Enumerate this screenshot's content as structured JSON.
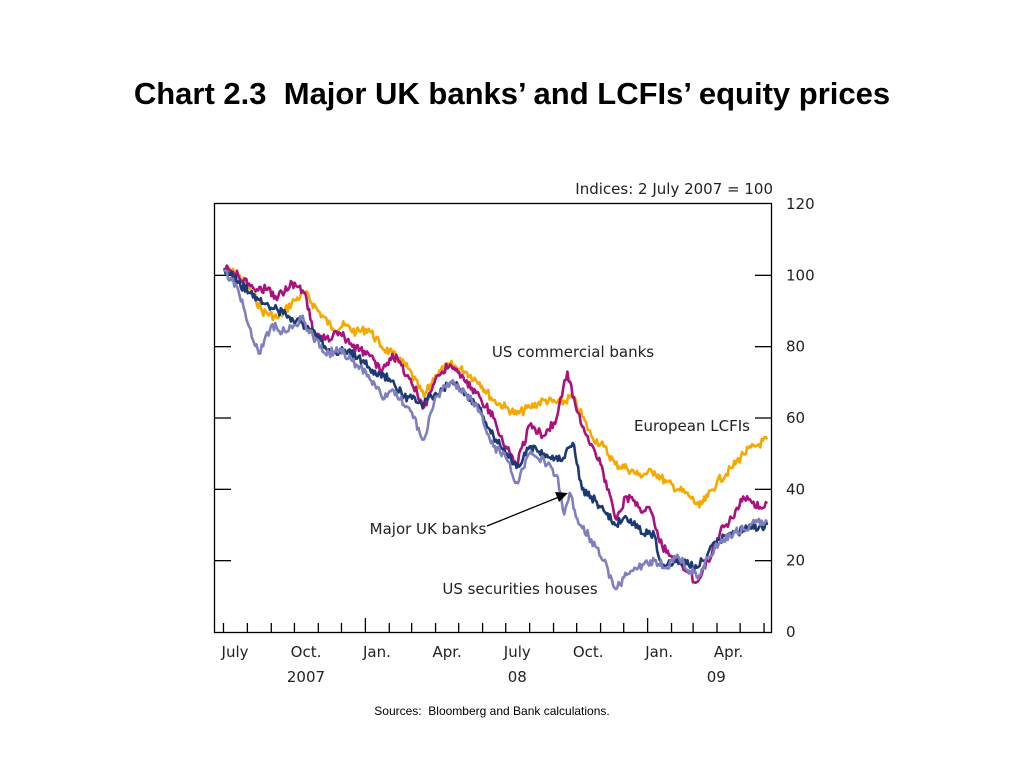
{
  "slide": {
    "title": "Chart 2.3  Major UK banks’ and LCFIs’ equity prices",
    "source": "Sources:  Bloomberg and Bank calculations."
  },
  "chart_data": {
    "type": "line",
    "unit_label": "Indices:  2 July 2007 = 100",
    "ylim": [
      0,
      120
    ],
    "y_ticks": [
      0,
      20,
      40,
      60,
      80,
      100,
      120
    ],
    "x_range": [
      "2007-06-20",
      "2009-06-10"
    ],
    "x_tick_dates": [
      "2007-07-01",
      "2007-08-01",
      "2007-09-01",
      "2007-10-01",
      "2007-11-01",
      "2007-12-01",
      "2008-01-01",
      "2008-02-01",
      "2008-03-01",
      "2008-04-01",
      "2008-05-01",
      "2008-06-01",
      "2008-07-01",
      "2008-08-01",
      "2008-09-01",
      "2008-10-01",
      "2008-11-01",
      "2008-12-01",
      "2009-01-01",
      "2009-02-01",
      "2009-03-01",
      "2009-04-01",
      "2009-05-01",
      "2009-06-01"
    ],
    "x_labels": [
      {
        "text": "July",
        "date": "2007-07-16"
      },
      {
        "text": "Oct.",
        "date": "2007-10-16"
      },
      {
        "text": "Jan.",
        "date": "2008-01-16"
      },
      {
        "text": "Apr.",
        "date": "2008-04-16"
      },
      {
        "text": "July",
        "date": "2008-07-16"
      },
      {
        "text": "Oct.",
        "date": "2008-10-16"
      },
      {
        "text": "Jan.",
        "date": "2009-01-16"
      },
      {
        "text": "Apr.",
        "date": "2009-04-16"
      }
    ],
    "year_labels": [
      {
        "text": "2007",
        "date": "2007-10-16"
      },
      {
        "text": "08",
        "date": "2008-07-16"
      },
      {
        "text": "09",
        "date": "2009-03-31"
      }
    ],
    "grid": false,
    "legend": "inline labels",
    "series": [
      {
        "name": "European LCFIs",
        "color": "#f5a800",
        "points": [
          [
            "2007-07-02",
            102
          ],
          [
            "2007-07-20",
            100
          ],
          [
            "2007-08-05",
            96
          ],
          [
            "2007-08-20",
            90
          ],
          [
            "2007-09-10",
            88
          ],
          [
            "2007-10-01",
            93
          ],
          [
            "2007-10-15",
            95
          ],
          [
            "2007-11-01",
            90
          ],
          [
            "2007-11-20",
            85
          ],
          [
            "2007-12-05",
            86
          ],
          [
            "2007-12-20",
            84
          ],
          [
            "2008-01-05",
            85
          ],
          [
            "2008-01-22",
            80
          ],
          [
            "2008-02-05",
            78
          ],
          [
            "2008-02-25",
            74
          ],
          [
            "2008-03-17",
            66
          ],
          [
            "2008-04-01",
            72
          ],
          [
            "2008-04-20",
            75
          ],
          [
            "2008-05-10",
            73
          ],
          [
            "2008-05-28",
            70
          ],
          [
            "2008-06-15",
            65
          ],
          [
            "2008-07-01",
            63
          ],
          [
            "2008-07-15",
            61
          ],
          [
            "2008-08-01",
            63
          ],
          [
            "2008-08-20",
            65
          ],
          [
            "2008-09-10",
            64
          ],
          [
            "2008-09-25",
            66
          ],
          [
            "2008-10-05",
            62
          ],
          [
            "2008-10-20",
            55
          ],
          [
            "2008-11-05",
            52
          ],
          [
            "2008-11-20",
            47
          ],
          [
            "2008-12-05",
            46
          ],
          [
            "2008-12-20",
            44
          ],
          [
            "2009-01-10",
            45
          ],
          [
            "2009-01-25",
            42
          ],
          [
            "2009-02-10",
            40
          ],
          [
            "2009-02-25",
            38
          ],
          [
            "2009-03-09",
            35
          ],
          [
            "2009-03-20",
            38
          ],
          [
            "2009-04-01",
            42
          ],
          [
            "2009-04-20",
            46
          ],
          [
            "2009-05-05",
            50
          ],
          [
            "2009-05-20",
            52
          ],
          [
            "2009-06-05",
            54
          ]
        ]
      },
      {
        "name": "US commercial banks",
        "color": "#a8117e",
        "points": [
          [
            "2007-07-02",
            102
          ],
          [
            "2007-07-20",
            100
          ],
          [
            "2007-08-05",
            97
          ],
          [
            "2007-08-25",
            96
          ],
          [
            "2007-09-10",
            94
          ],
          [
            "2007-09-28",
            98
          ],
          [
            "2007-10-15",
            95
          ],
          [
            "2007-10-25",
            84
          ],
          [
            "2007-11-10",
            82
          ],
          [
            "2007-11-28",
            84
          ],
          [
            "2007-12-15",
            80
          ],
          [
            "2008-01-05",
            78
          ],
          [
            "2008-01-22",
            73
          ],
          [
            "2008-02-05",
            78
          ],
          [
            "2008-02-25",
            72
          ],
          [
            "2008-03-17",
            63
          ],
          [
            "2008-04-01",
            71
          ],
          [
            "2008-04-20",
            75
          ],
          [
            "2008-05-10",
            70
          ],
          [
            "2008-05-28",
            66
          ],
          [
            "2008-06-15",
            60
          ],
          [
            "2008-07-01",
            52
          ],
          [
            "2008-07-15",
            47
          ],
          [
            "2008-08-01",
            58
          ],
          [
            "2008-08-20",
            55
          ],
          [
            "2008-09-05",
            60
          ],
          [
            "2008-09-19",
            73
          ],
          [
            "2008-10-01",
            62
          ],
          [
            "2008-10-15",
            55
          ],
          [
            "2008-11-01",
            47
          ],
          [
            "2008-11-20",
            32
          ],
          [
            "2008-12-05",
            38
          ],
          [
            "2008-12-20",
            35
          ],
          [
            "2009-01-05",
            34
          ],
          [
            "2009-01-20",
            24
          ],
          [
            "2009-02-05",
            21
          ],
          [
            "2009-02-20",
            17
          ],
          [
            "2009-03-06",
            14
          ],
          [
            "2009-03-20",
            20
          ],
          [
            "2009-04-05",
            28
          ],
          [
            "2009-04-20",
            32
          ],
          [
            "2009-05-05",
            38
          ],
          [
            "2009-05-20",
            35
          ],
          [
            "2009-06-05",
            36
          ]
        ]
      },
      {
        "name": "Major UK banks",
        "color": "#1b3a73",
        "points": [
          [
            "2007-07-02",
            102
          ],
          [
            "2007-07-20",
            98
          ],
          [
            "2007-08-05",
            95
          ],
          [
            "2007-08-25",
            92
          ],
          [
            "2007-09-10",
            90
          ],
          [
            "2007-09-28",
            88
          ],
          [
            "2007-10-15",
            86
          ],
          [
            "2007-11-01",
            82
          ],
          [
            "2007-11-20",
            78
          ],
          [
            "2007-12-10",
            79
          ],
          [
            "2007-12-28",
            76
          ],
          [
            "2008-01-15",
            72
          ],
          [
            "2008-02-01",
            71
          ],
          [
            "2008-02-20",
            66
          ],
          [
            "2008-03-17",
            64
          ],
          [
            "2008-04-01",
            67
          ],
          [
            "2008-04-20",
            70
          ],
          [
            "2008-05-10",
            67
          ],
          [
            "2008-05-28",
            63
          ],
          [
            "2008-06-15",
            55
          ],
          [
            "2008-07-01",
            50
          ],
          [
            "2008-07-15",
            46
          ],
          [
            "2008-08-01",
            52
          ],
          [
            "2008-08-20",
            50
          ],
          [
            "2008-09-10",
            48
          ],
          [
            "2008-09-26",
            53
          ],
          [
            "2008-10-08",
            40
          ],
          [
            "2008-10-20",
            38
          ],
          [
            "2008-11-05",
            34
          ],
          [
            "2008-11-20",
            30
          ],
          [
            "2008-12-05",
            32
          ],
          [
            "2008-12-20",
            29
          ],
          [
            "2009-01-10",
            27
          ],
          [
            "2009-01-20",
            18
          ],
          [
            "2009-02-05",
            20
          ],
          [
            "2009-02-20",
            19
          ],
          [
            "2009-03-06",
            18
          ],
          [
            "2009-03-20",
            22
          ],
          [
            "2009-04-05",
            26
          ],
          [
            "2009-04-25",
            28
          ],
          [
            "2009-05-15",
            29
          ],
          [
            "2009-06-05",
            30
          ]
        ]
      },
      {
        "name": "US securities houses",
        "color": "#7f7fbf",
        "points": [
          [
            "2007-07-02",
            101
          ],
          [
            "2007-07-20",
            96
          ],
          [
            "2007-08-05",
            85
          ],
          [
            "2007-08-16",
            78
          ],
          [
            "2007-09-01",
            86
          ],
          [
            "2007-09-20",
            84
          ],
          [
            "2007-10-10",
            88
          ],
          [
            "2007-10-25",
            83
          ],
          [
            "2007-11-10",
            78
          ],
          [
            "2007-11-28",
            79
          ],
          [
            "2007-12-15",
            76
          ],
          [
            "2008-01-05",
            72
          ],
          [
            "2008-01-22",
            66
          ],
          [
            "2008-02-05",
            68
          ],
          [
            "2008-02-25",
            63
          ],
          [
            "2008-03-17",
            54
          ],
          [
            "2008-04-01",
            66
          ],
          [
            "2008-04-20",
            70
          ],
          [
            "2008-05-10",
            67
          ],
          [
            "2008-05-28",
            62
          ],
          [
            "2008-06-15",
            52
          ],
          [
            "2008-07-01",
            49
          ],
          [
            "2008-07-15",
            42
          ],
          [
            "2008-08-01",
            50
          ],
          [
            "2008-08-20",
            48
          ],
          [
            "2008-09-05",
            44
          ],
          [
            "2008-09-15",
            33
          ],
          [
            "2008-09-22",
            39
          ],
          [
            "2008-10-05",
            30
          ],
          [
            "2008-10-20",
            26
          ],
          [
            "2008-11-05",
            20
          ],
          [
            "2008-11-21",
            12
          ],
          [
            "2008-12-05",
            16
          ],
          [
            "2008-12-20",
            18
          ],
          [
            "2009-01-10",
            20
          ],
          [
            "2009-01-25",
            18
          ],
          [
            "2009-02-10",
            21
          ],
          [
            "2009-02-25",
            17
          ],
          [
            "2009-03-09",
            16
          ],
          [
            "2009-03-20",
            21
          ],
          [
            "2009-04-05",
            25
          ],
          [
            "2009-04-25",
            28
          ],
          [
            "2009-05-15",
            30
          ],
          [
            "2009-06-05",
            31
          ]
        ]
      }
    ],
    "annotations": [
      {
        "text": "US commercial banks"
      },
      {
        "text": "European LCFIs"
      },
      {
        "text": "Major UK banks",
        "arrow": true
      },
      {
        "text": "US securities houses"
      }
    ]
  }
}
